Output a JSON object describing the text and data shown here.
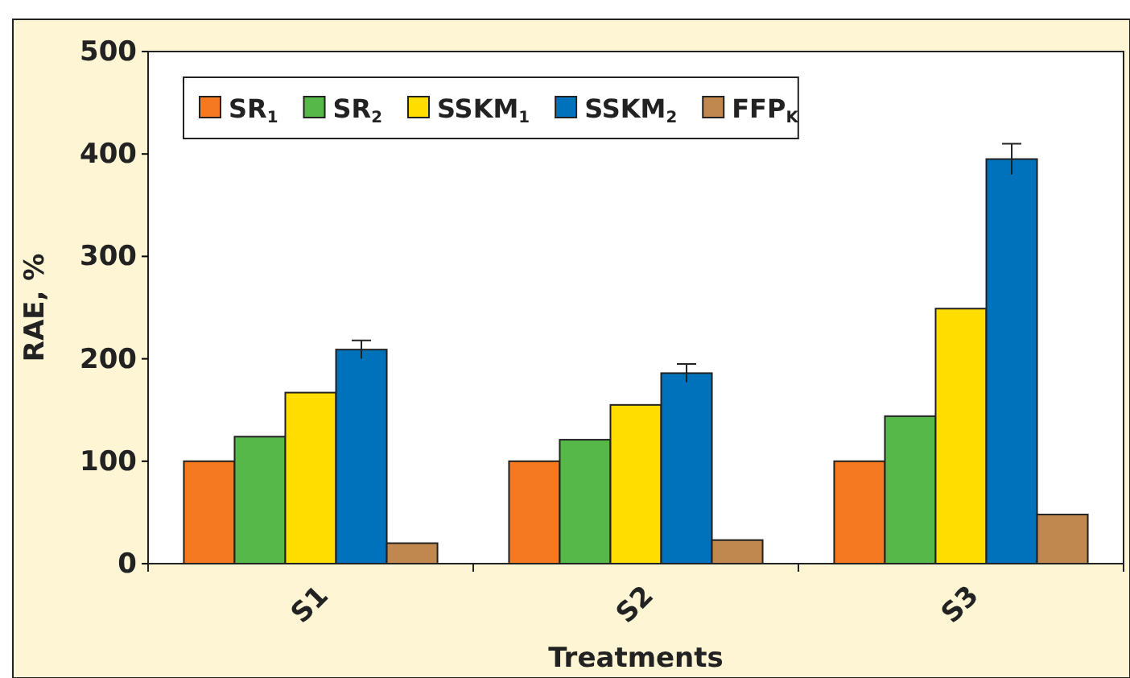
{
  "chart_data": {
    "type": "bar",
    "xlabel": "Treatments",
    "ylabel": "RAE, %",
    "categories": [
      "S1",
      "S2",
      "S3"
    ],
    "series": [
      {
        "name": "SR$_{1}$",
        "color": "#f47920",
        "values": [
          100,
          100,
          100
        ]
      },
      {
        "name": "SR$_{2}$",
        "color": "#55b848",
        "values": [
          124,
          121,
          144
        ]
      },
      {
        "name": "SSKM$_{1}$",
        "color": "#ffdd00",
        "values": [
          167,
          155,
          249
        ]
      },
      {
        "name": "SSKM$_{2}$",
        "color": "#0072bc",
        "values": [
          209,
          186,
          395
        ],
        "errors": [
          9,
          9,
          15
        ]
      },
      {
        "name": "FFP$_{K}$",
        "color": "#c0874e",
        "values": [
          20,
          23,
          48
        ]
      }
    ],
    "ylim": [
      0,
      500
    ],
    "yticks": [
      0,
      100,
      200,
      300,
      400,
      500
    ],
    "grid": false,
    "legend": "top left"
  }
}
